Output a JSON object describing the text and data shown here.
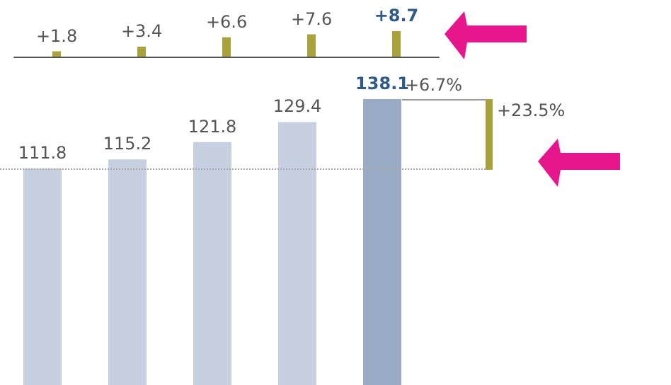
{
  "chart_data": [
    {
      "type": "bar",
      "categories": [
        null,
        null,
        null,
        null,
        null
      ],
      "values": [
        1.8,
        3.4,
        6.6,
        7.6,
        8.7
      ],
      "color": "#a9a23c",
      "value_labels": [
        "+1.8",
        "+3.4",
        "+6.6",
        "+7.6",
        "+8.7"
      ],
      "tick_labels": false,
      "grid": false
    },
    {
      "type": "bar",
      "categories": [
        null,
        null,
        null,
        null,
        null
      ],
      "values": [
        111.8,
        115.2,
        121.8,
        129.4,
        138.1
      ],
      "colors": [
        "#c6d0e1",
        "#c6d0e1",
        "#c6d0e1",
        "#c6d0e1",
        "#9aabc5"
      ],
      "data_labels": true,
      "tick_labels": false,
      "grid": false,
      "ref_lines": [
        {
          "axis": "y",
          "value": 111.8,
          "color": "#aaaaaa",
          "line_style": "dotted"
        }
      ],
      "annotations": [
        "+6.7%",
        "+23.5%"
      ]
    }
  ]
}
